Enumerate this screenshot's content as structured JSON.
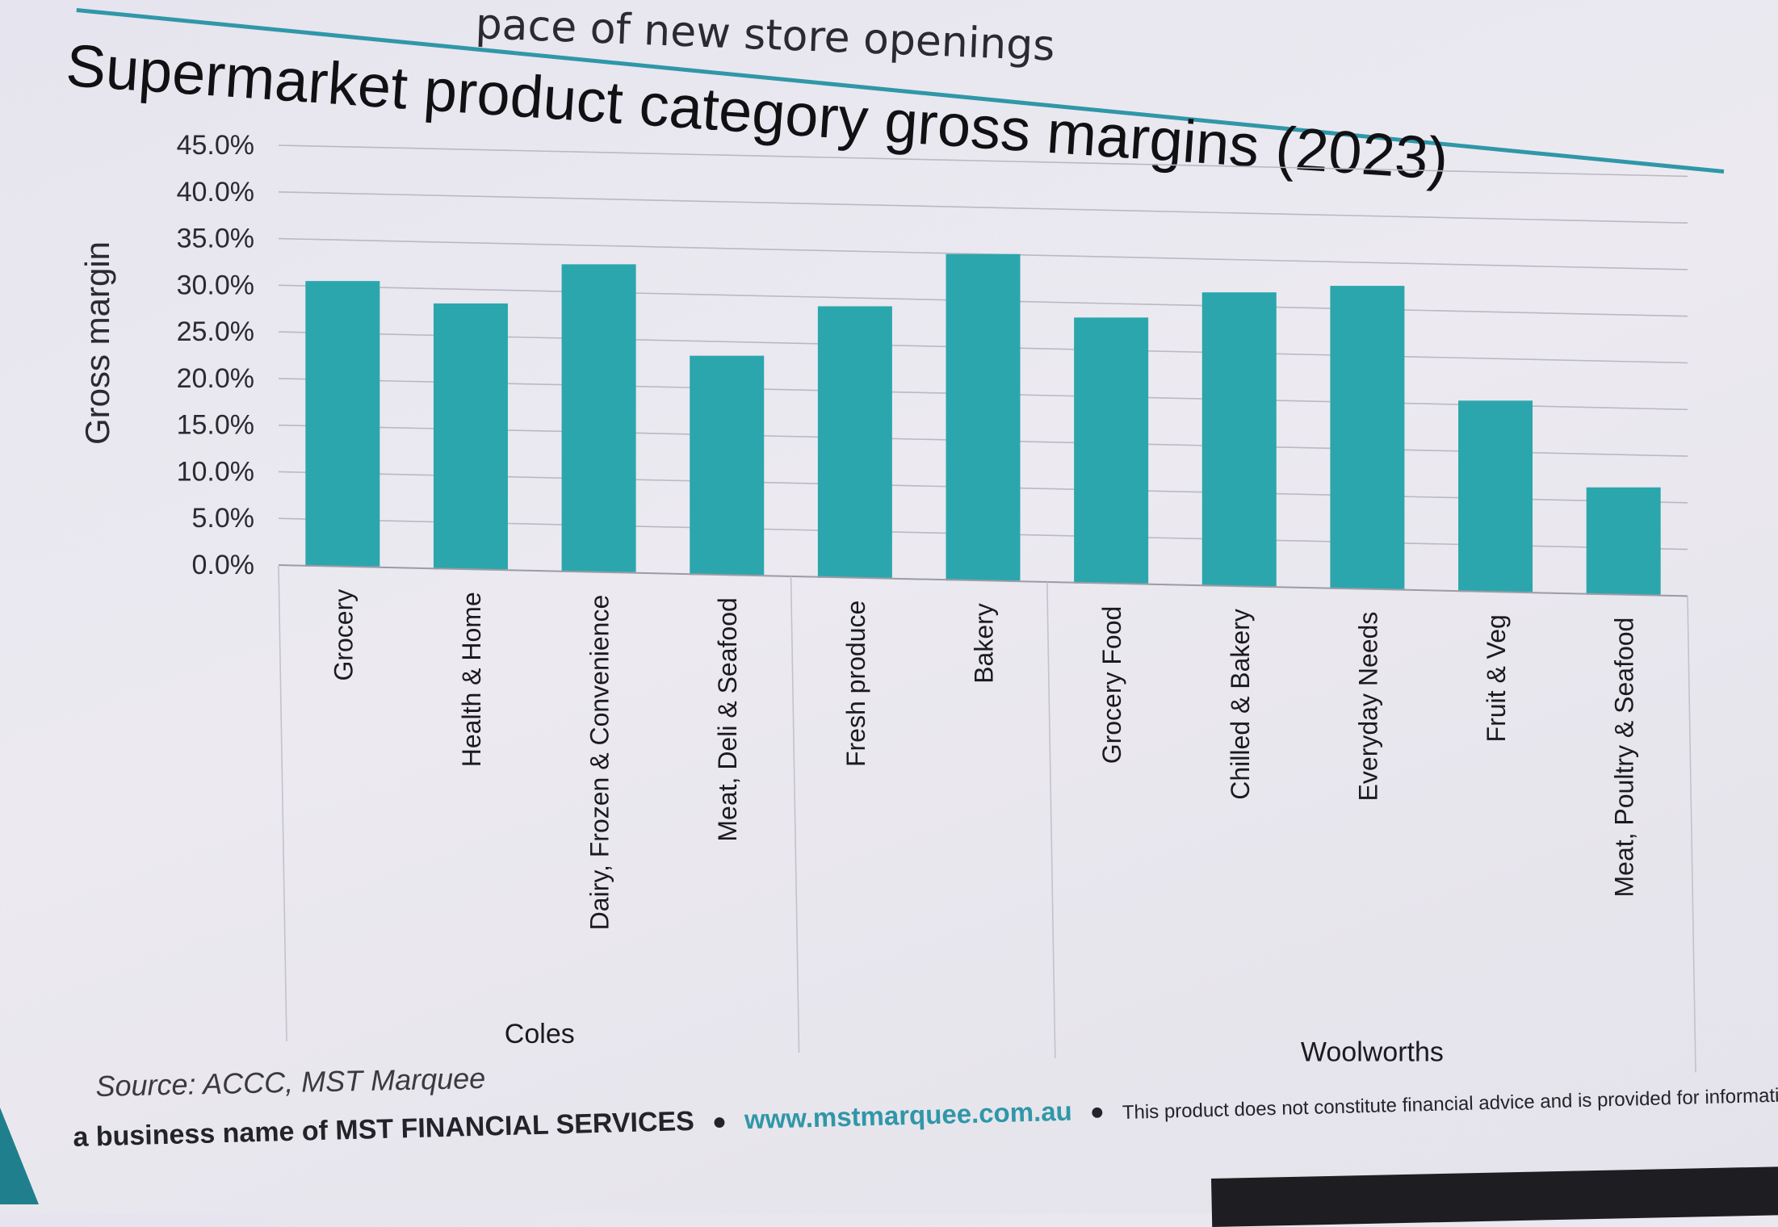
{
  "slide": {
    "previous_heading": "pace of new store openings",
    "source": "Source: ACCC, MST Marquee",
    "footer": {
      "business_name": "a business name of MST FINANCIAL SERVICES",
      "separator": "●",
      "url": "www.mstmarquee.com.au",
      "disclaimer": "This product does not constitute financial advice and is provided for information purposes only."
    },
    "colors": {
      "accent": "#2f97a8",
      "bar": "#2ca6ad",
      "grid": "#b9b9c2"
    }
  },
  "chart_data": {
    "type": "bar",
    "title": "Supermarket product category gross margins (2023)",
    "ylabel": "Gross margin",
    "xlabel": "",
    "ylim": [
      0,
      45
    ],
    "y_ticks": [
      0,
      5,
      10,
      15,
      20,
      25,
      30,
      35,
      40,
      45
    ],
    "y_tick_labels": [
      "0.0%",
      "5.0%",
      "10.0%",
      "15.0%",
      "20.0%",
      "25.0%",
      "30.0%",
      "35.0%",
      "40.0%",
      "45.0%"
    ],
    "grid": true,
    "legend": "none",
    "groups": [
      {
        "name": "Coles",
        "categories": [
          "Grocery",
          "Health & Home",
          "Dairy, Frozen & Convenience",
          "Meat, Deli & Seafood"
        ]
      },
      {
        "name": "",
        "categories": [
          "Fresh produce",
          "Bakery"
        ]
      },
      {
        "name": "Woolworths",
        "categories": [
          "Grocery Food",
          "Chilled & Bakery",
          "Everyday Needs",
          "Fruit & Veg",
          "Meat, Poultry & Seafood"
        ]
      }
    ],
    "categories": [
      "Grocery",
      "Health & Home",
      "Dairy, Frozen & Convenience",
      "Meat, Deli & Seafood",
      "Fresh produce",
      "Bakery",
      "Grocery Food",
      "Chilled & Bakery",
      "Everyday Needs",
      "Fruit & Veg",
      "Meat, Poultry & Seafood"
    ],
    "values": [
      30.6,
      28.5,
      33.0,
      23.5,
      29.1,
      35.0,
      28.5,
      31.5,
      32.5,
      20.5,
      11.5
    ]
  }
}
